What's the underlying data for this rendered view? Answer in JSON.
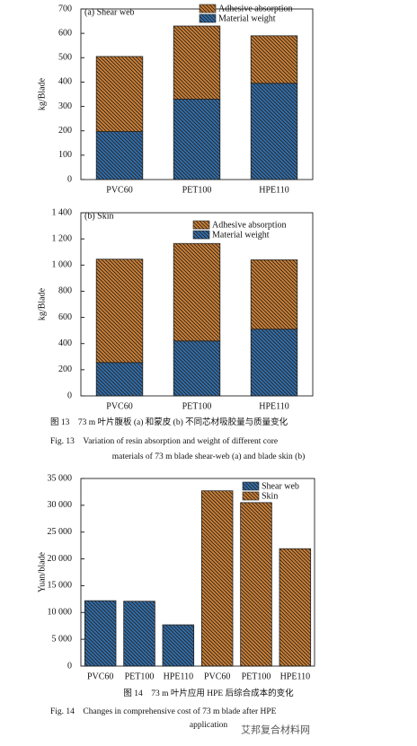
{
  "chart_data": [
    {
      "type": "bar",
      "stacked": true,
      "annotation": "(a) Shear web",
      "ylabel": "kg/Blade",
      "categories": [
        "PVC60",
        "PET100",
        "HPE110"
      ],
      "series": [
        {
          "name": "Material weight",
          "color": "#2f6fae",
          "values": [
            197,
            330,
            395
          ]
        },
        {
          "name": "Adhesive absorption",
          "color": "#c8803a",
          "values": [
            308,
            300,
            195
          ]
        }
      ],
      "ylim": [
        0,
        700
      ],
      "yticks": [
        0,
        100,
        200,
        300,
        400,
        500,
        600,
        700
      ]
    },
    {
      "type": "bar",
      "stacked": true,
      "annotation": "(b) Skin",
      "ylabel": "kg/Blade",
      "categories": [
        "PVC60",
        "PET100",
        "HPE110"
      ],
      "series": [
        {
          "name": "Material weight",
          "color": "#2f6fae",
          "values": [
            255,
            420,
            510
          ]
        },
        {
          "name": "Adhesive absorption",
          "color": "#c8803a",
          "values": [
            790,
            745,
            530
          ]
        }
      ],
      "ylim": [
        0,
        1400
      ],
      "yticks": [
        0,
        200,
        400,
        600,
        800,
        {
          "value": 1000,
          "label": "1 000"
        },
        {
          "value": 1200,
          "label": "1 200"
        },
        {
          "value": 1400,
          "label": "1 400"
        }
      ]
    },
    {
      "type": "bar",
      "stacked": true,
      "ylabel": "Yuan/blade",
      "categories": [
        "PVC60",
        "PET100",
        "HPE110",
        "PVC60",
        "PET100",
        "HPE110"
      ],
      "series": [
        {
          "name": "Shear web",
          "color": "#2f6fae",
          "values": [
            12200,
            12100,
            7700,
            null,
            null,
            null
          ]
        },
        {
          "name": "Skin",
          "color": "#c8803a",
          "values": [
            null,
            null,
            null,
            32700,
            30500,
            21900
          ]
        }
      ],
      "ylim": [
        0,
        35000
      ],
      "yticks": [
        0,
        {
          "value": 5000,
          "label": "5 000"
        },
        {
          "value": 10000,
          "label": "10 000"
        },
        {
          "value": 15000,
          "label": "15 000"
        },
        {
          "value": 20000,
          "label": "20 000"
        },
        {
          "value": 25000,
          "label": "25 000"
        },
        {
          "value": 30000,
          "label": "30 000"
        },
        {
          "value": 35000,
          "label": "35 000"
        }
      ]
    }
  ],
  "captions": {
    "fig13_cn": "图 13　73 m 叶片腹板 (a) 和蒙皮 (b) 不同芯材吸胶量与质量变化",
    "fig13_en_1": "Fig. 13　Variation of resin absorption and weight of different core",
    "fig13_en_2": "materials of 73 m blade shear-web (a) and blade skin (b)",
    "fig14_cn": "图 14　73 m 叶片应用 HPE 后综合成本的变化",
    "fig14_en_1": "Fig. 14　Changes in comprehensive cost of 73 m blade after HPE",
    "fig14_en_2": "application",
    "watermark": "艾邦复合材料网"
  }
}
